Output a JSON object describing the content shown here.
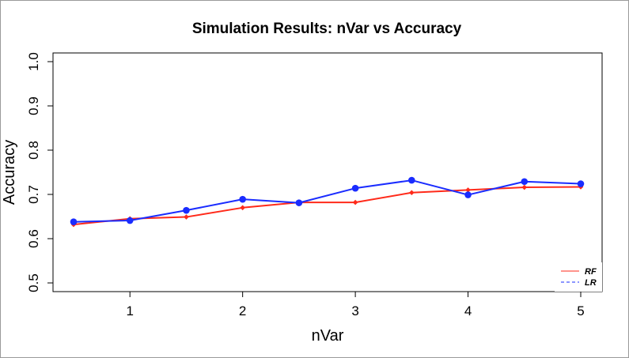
{
  "chart_data": {
    "type": "line",
    "title": "Simulation Results: nVar vs Accuracy",
    "xlabel": "nVar",
    "ylabel": "Accuracy",
    "xlim": [
      0.5,
      5
    ],
    "ylim": [
      0.5,
      1.0
    ],
    "xticks": [
      "1",
      "2",
      "3",
      "4",
      "5"
    ],
    "yticks": [
      "0.5",
      "0.6",
      "0.7",
      "0.8",
      "0.9",
      "1.0"
    ],
    "x": [
      0.5,
      1.0,
      1.5,
      2.0,
      2.5,
      3.0,
      3.5,
      4.0,
      4.5,
      5.0
    ],
    "series": [
      {
        "name": "RF",
        "color": "#ff2a1a",
        "marker": "diamond",
        "line": "solid",
        "values": [
          0.632,
          0.645,
          0.649,
          0.67,
          0.682,
          0.682,
          0.704,
          0.71,
          0.716,
          0.717
        ]
      },
      {
        "name": "LR",
        "color": "#1a2cff",
        "marker": "circle",
        "line": "dashed",
        "values": [
          0.638,
          0.641,
          0.664,
          0.689,
          0.681,
          0.714,
          0.732,
          0.699,
          0.729,
          0.724
        ]
      }
    ],
    "grid": false,
    "legend_position": "bottom-right"
  }
}
